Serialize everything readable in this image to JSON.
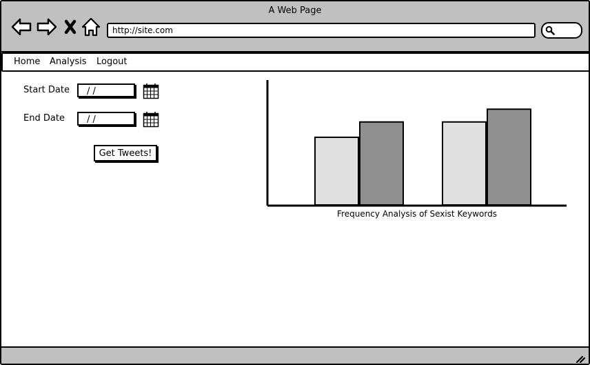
{
  "window": {
    "title": "A Web Page"
  },
  "browser": {
    "url": "http://site.com",
    "nav_icons": [
      "back-arrow-icon",
      "forward-arrow-icon",
      "close-x-icon",
      "home-icon"
    ],
    "search_icon": "magnifier-icon"
  },
  "menu": {
    "items": [
      {
        "label": "Home"
      },
      {
        "label": "Analysis"
      },
      {
        "label": "Logout"
      }
    ]
  },
  "form": {
    "start_label": "Start Date",
    "start_value": "/  /",
    "end_label": "End Date",
    "end_value": "/  /",
    "button_label": "Get Tweets!",
    "calendar_icon": "calendar-icon"
  },
  "chart_data": {
    "type": "bar",
    "title": "Frequency Analysis of Sexist Keywords",
    "categories": [
      "",
      ""
    ],
    "series": [
      {
        "values": [
          53,
          65
        ],
        "color": "#e0e0e0"
      },
      {
        "values": [
          65,
          75
        ],
        "color": "#909090"
      }
    ],
    "ylim": [
      0,
      100
    ],
    "grid": false,
    "xlabel": "",
    "ylabel": ""
  }
}
